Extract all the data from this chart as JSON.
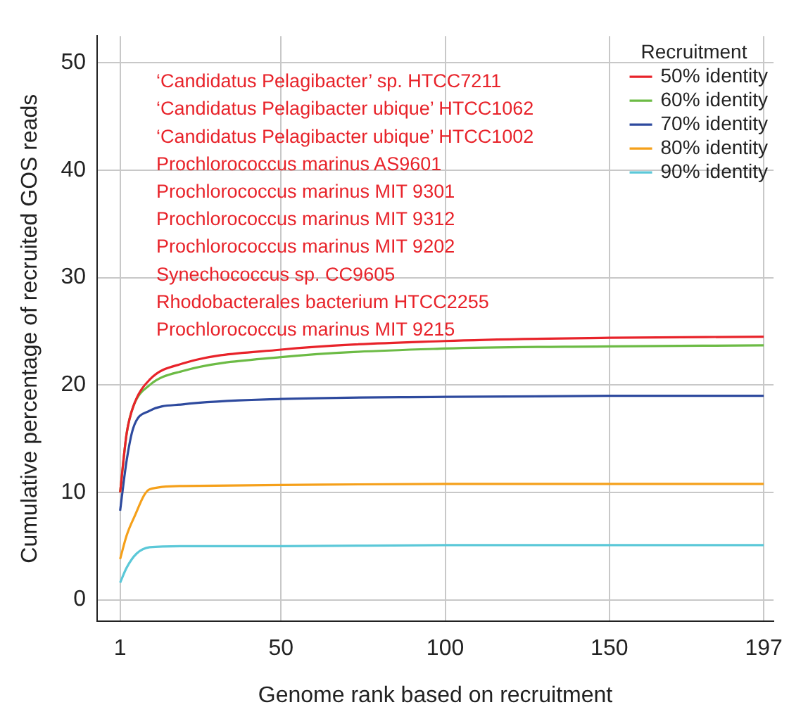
{
  "chart_data": {
    "type": "line",
    "xlabel": "Genome rank based on recruitment",
    "ylabel": "Cumulative percentage of recruited GOS reads",
    "legend_title": "Recruitment",
    "legend": "top right",
    "grid": true,
    "marker": "none",
    "line_style": "solid",
    "xlim": [
      -6,
      200
    ],
    "xticks": [
      1,
      50,
      100,
      150,
      197
    ],
    "ylim": [
      -2,
      52.5
    ],
    "yticks": [
      0,
      10,
      20,
      30,
      40,
      50
    ],
    "annotations": [
      "‘Candidatus Pelagibacter’ sp. HTCC7211",
      "‘Candidatus Pelagibacter ubique’ HTCC1062",
      "‘Candidatus Pelagibacter ubique’ HTCC1002",
      "Prochlorococcus marinus AS9601",
      "Prochlorococcus marinus MIT 9301",
      "Prochlorococcus marinus MIT 9312",
      "Prochlorococcus marinus MIT 9202",
      "Synechococcus sp. CC9605",
      "Rhodobacterales bacterium HTCC2255",
      "Prochlorococcus marinus MIT 9215"
    ],
    "series": [
      {
        "name": "50% identity",
        "color": "#e8232a",
        "x": [
          1,
          3,
          5,
          10,
          20,
          50,
          100,
          150,
          197
        ],
        "values": [
          10,
          15.5,
          18,
          20.5,
          22,
          23.3,
          24.1,
          24.4,
          24.5
        ]
      },
      {
        "name": "60% identity",
        "color": "#6cbb45",
        "x": [
          1,
          3,
          5,
          10,
          20,
          50,
          100,
          150,
          197
        ],
        "values": [
          10,
          15.5,
          18,
          20,
          21.3,
          22.6,
          23.4,
          23.6,
          23.7
        ]
      },
      {
        "name": "70% identity",
        "color": "#2e4a9e",
        "x": [
          1,
          3,
          5,
          10,
          20,
          50,
          100,
          150,
          197
        ],
        "values": [
          8.3,
          13,
          16,
          17.6,
          18.2,
          18.7,
          18.9,
          19,
          19
        ]
      },
      {
        "name": "80% identity",
        "color": "#f5a01a",
        "x": [
          1,
          3,
          5,
          10,
          20,
          50,
          100,
          150,
          197
        ],
        "values": [
          3.8,
          6,
          7.5,
          10.3,
          10.6,
          10.7,
          10.8,
          10.8,
          10.8
        ]
      },
      {
        "name": "90% identity",
        "color": "#5bc8d8",
        "x": [
          1,
          3,
          6,
          10,
          20,
          50,
          100,
          150,
          197
        ],
        "values": [
          1.6,
          3,
          4.3,
          4.9,
          5,
          5,
          5.1,
          5.1,
          5.1
        ]
      }
    ]
  }
}
